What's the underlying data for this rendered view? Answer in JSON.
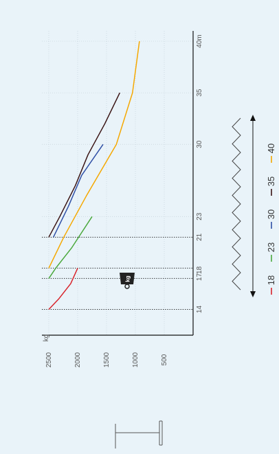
{
  "chart_data": {
    "type": "line",
    "orientation": "rotated-90-counterclockwise",
    "x_unit_label": "m",
    "y_unit_label": "kg",
    "x_ticks": [
      14,
      17,
      18,
      21,
      23,
      30,
      35,
      40
    ],
    "x_tick_labels": [
      "14",
      "17",
      "18",
      "21",
      "23",
      "30",
      "35",
      "40m"
    ],
    "y_ticks": [
      2500,
      2000,
      1500,
      1000,
      500
    ],
    "y_tick_labels": [
      "2500",
      "2000",
      "1500",
      "1000",
      "500"
    ],
    "xlim": [
      11.5,
      41
    ],
    "ylim": [
      0,
      2500
    ],
    "grid": true,
    "dotted_reference_x": [
      14,
      17,
      18,
      21
    ],
    "legend_placement": "bottom-right",
    "series": [
      {
        "name": "18",
        "color": "#d8232a",
        "points": [
          [
            14,
            2500
          ],
          [
            15,
            2330
          ],
          [
            16.5,
            2120
          ],
          [
            18,
            2000
          ]
        ]
      },
      {
        "name": "23",
        "color": "#4aa83c",
        "points": [
          [
            17,
            2500
          ],
          [
            18,
            2380
          ],
          [
            20,
            2100
          ],
          [
            23,
            1750
          ]
        ]
      },
      {
        "name": "30",
        "color": "#2f4fa5",
        "points": [
          [
            21,
            2420
          ],
          [
            24,
            2160
          ],
          [
            27,
            1930
          ],
          [
            30,
            1560
          ]
        ]
      },
      {
        "name": "35",
        "color": "#3a1414",
        "points": [
          [
            21,
            2500
          ],
          [
            23,
            2310
          ],
          [
            26,
            2040
          ],
          [
            29,
            1820
          ],
          [
            32,
            1530
          ],
          [
            35,
            1270
          ]
        ]
      },
      {
        "name": "40",
        "color": "#f5a800",
        "points": [
          [
            18,
            2500
          ],
          [
            21,
            2240
          ],
          [
            25,
            1850
          ],
          [
            30,
            1330
          ],
          [
            35,
            1050
          ],
          [
            40,
            930
          ]
        ]
      }
    ],
    "legend": {
      "entries": [
        "18",
        "23",
        "30",
        "35",
        "40"
      ],
      "separator": "—"
    }
  },
  "icons": {
    "weight": {
      "label": "kg",
      "name": "weight-icon"
    },
    "crane": {
      "label": "",
      "name": "crane-jib-icon"
    },
    "boom": {
      "label": "",
      "name": "boom-sections-icon"
    }
  },
  "colors": {
    "background": "#e9f3f9",
    "axis": "#111111",
    "grid": "#b9c7cf"
  }
}
